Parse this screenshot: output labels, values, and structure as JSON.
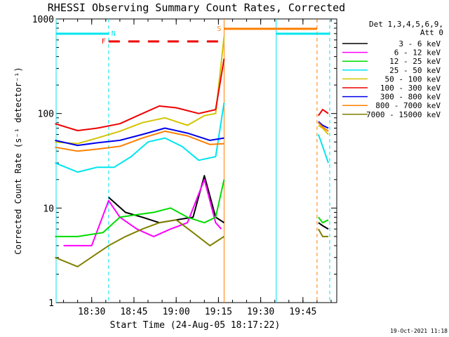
{
  "chart_data": {
    "type": "line",
    "title": "RHESSI Observing Summary Count Rates, Corrected",
    "ylabel": "Corrected Count Rate (s⁻¹ detector⁻¹)",
    "xlabel": "Start Time (24-Aug-05 18:17:22)",
    "yscale": "log",
    "ylim": [
      1,
      1000
    ],
    "xlim": [
      "18:17:22",
      "19:57:00"
    ],
    "yticks": [
      {
        "value": 1,
        "label": "1"
      },
      {
        "value": 10,
        "label": "10"
      },
      {
        "value": 100,
        "label": "100"
      },
      {
        "value": 1000,
        "label": "1000"
      }
    ],
    "xticks": [
      "18:30",
      "18:45",
      "19:00",
      "19:15",
      "19:30",
      "19:45"
    ],
    "legend": {
      "placement": "right",
      "header": [
        "Det 1,3,4,5,6,9,",
        "Att 0"
      ],
      "entries": [
        {
          "label": "3 - 6 keV",
          "color": "#000000"
        },
        {
          "label": "6 - 12 keV",
          "color": "#ff00ff"
        },
        {
          "label": "12 - 25 keV",
          "color": "#00dd00"
        },
        {
          "label": "25 - 50 keV",
          "color": "#00e5ee"
        },
        {
          "label": "50 - 100 keV",
          "color": "#d4c400"
        },
        {
          "label": "100 - 300 keV",
          "color": "#ee0000"
        },
        {
          "label": "300 - 800 keV",
          "color": "#0000ee"
        },
        {
          "label": "800 - 7000 keV",
          "color": "#ff7f00"
        },
        {
          "label": "7000 - 15000 keV",
          "color": "#808000"
        }
      ]
    },
    "flags": [
      {
        "label": "N",
        "color": "#00e5ee",
        "segments": [
          [
            "18:17:22",
            "18:36:00"
          ],
          [
            "19:35:30",
            "19:54:30"
          ]
        ]
      },
      {
        "label": "F",
        "color": "#ee0000",
        "dashed": true,
        "segments": [
          [
            "18:36:00",
            "19:16:30"
          ]
        ]
      },
      {
        "label": "S",
        "color": "#ff7f00",
        "segments": [
          [
            "19:17:00",
            "19:50:00"
          ]
        ]
      }
    ],
    "markers": [
      {
        "time": "18:17:22",
        "color": "#00e5ee",
        "style": "solid"
      },
      {
        "time": "18:36:00",
        "color": "#00e5ee",
        "style": "dashed"
      },
      {
        "time": "19:17:00",
        "color": "#ff7f00",
        "style": "solid"
      },
      {
        "time": "19:35:30",
        "color": "#00e5ee",
        "style": "solid"
      },
      {
        "time": "19:50:00",
        "color": "#ff7f00",
        "style": "dashed"
      },
      {
        "time": "19:54:30",
        "color": "#00e5ee",
        "style": "dashed"
      }
    ],
    "series": [
      {
        "name": "3 - 6 keV",
        "color": "#000000",
        "x": [
          "18:36",
          "18:42",
          "18:48",
          "18:54",
          "19:00",
          "19:06",
          "19:10",
          "19:14",
          "19:17"
        ],
        "values": [
          13,
          9,
          8,
          7,
          7.5,
          8,
          22,
          8,
          7
        ]
      },
      {
        "name": "6 - 12 keV",
        "color": "#ff00ff",
        "x": [
          "18:20",
          "18:30",
          "18:36",
          "18:40",
          "18:46",
          "18:52",
          "18:58",
          "19:04",
          "19:10",
          "19:14",
          "19:16"
        ],
        "values": [
          4,
          4,
          12,
          8,
          6,
          5,
          6,
          7,
          20,
          7,
          6
        ]
      },
      {
        "name": "12 - 25 keV",
        "color": "#00dd00",
        "x": [
          "18:17",
          "18:25",
          "18:34",
          "18:40",
          "18:46",
          "18:52",
          "18:58",
          "19:04",
          "19:10",
          "19:14",
          "19:17"
        ],
        "values": [
          5,
          5,
          5.5,
          8,
          8.5,
          9,
          10,
          8,
          7,
          8,
          20
        ]
      },
      {
        "name": "25 - 50 keV",
        "color": "#00e5ee",
        "x": [
          "18:17",
          "18:25",
          "18:32",
          "18:38",
          "18:44",
          "18:50",
          "18:56",
          "19:02",
          "19:08",
          "19:14",
          "19:17"
        ],
        "values": [
          30,
          24,
          27,
          27,
          35,
          50,
          55,
          45,
          32,
          35,
          130
        ]
      },
      {
        "name": "50 - 100 keV",
        "color": "#d4c400",
        "x": [
          "18:17",
          "18:25",
          "18:32",
          "18:40",
          "18:48",
          "18:56",
          "19:04",
          "19:10",
          "19:14",
          "19:17"
        ],
        "values": [
          50,
          48,
          55,
          65,
          80,
          90,
          75,
          95,
          100,
          650
        ]
      },
      {
        "name": "100 - 300 keV",
        "color": "#ee0000",
        "x": [
          "18:17",
          "18:25",
          "18:32",
          "18:40",
          "18:48",
          "18:54",
          "19:00",
          "19:08",
          "19:14",
          "19:17"
        ],
        "values": [
          78,
          66,
          70,
          78,
          100,
          120,
          115,
          100,
          110,
          380
        ]
      },
      {
        "name": "300 - 800 keV",
        "color": "#0000ee",
        "x": [
          "18:17",
          "18:25",
          "18:32",
          "18:40",
          "18:48",
          "18:56",
          "19:04",
          "19:12",
          "19:17"
        ],
        "values": [
          52,
          46,
          49,
          52,
          60,
          70,
          62,
          52,
          55
        ]
      },
      {
        "name": "800 - 7000 keV",
        "color": "#ff7f00",
        "x": [
          "18:17",
          "18:25",
          "18:32",
          "18:40",
          "18:48",
          "18:56",
          "19:04",
          "19:12",
          "19:17"
        ],
        "values": [
          44,
          40,
          42,
          45,
          55,
          65,
          58,
          47,
          48
        ]
      },
      {
        "name": "7000 - 15000 keV",
        "color": "#808000",
        "x": [
          "18:17",
          "18:25",
          "18:36",
          "18:42",
          "18:48",
          "18:54",
          "19:00",
          "19:06",
          "19:12",
          "19:17"
        ],
        "values": [
          3,
          2.4,
          4,
          5,
          6,
          7,
          7.5,
          5.5,
          4,
          5
        ]
      }
    ],
    "post_series": [
      {
        "name": "3 - 6 keV",
        "color": "#000000",
        "x": [
          "19:50:30",
          "19:52",
          "19:54"
        ],
        "values": [
          7,
          6.5,
          6
        ]
      },
      {
        "name": "12 - 25 keV",
        "color": "#00dd00",
        "x": [
          "19:50:30",
          "19:52",
          "19:54"
        ],
        "values": [
          8,
          7,
          7.5
        ]
      },
      {
        "name": "25 - 50 keV",
        "color": "#00e5ee",
        "x": [
          "19:50:30",
          "19:52",
          "19:54"
        ],
        "values": [
          60,
          45,
          30
        ]
      },
      {
        "name": "50 - 100 keV",
        "color": "#d4c400",
        "x": [
          "19:50:30",
          "19:52",
          "19:54"
        ],
        "values": [
          75,
          70,
          60
        ]
      },
      {
        "name": "100 - 300 keV",
        "color": "#ee0000",
        "x": [
          "19:50:30",
          "19:52",
          "19:54"
        ],
        "values": [
          95,
          110,
          100
        ]
      },
      {
        "name": "300 - 800 keV",
        "color": "#0000ee",
        "x": [
          "19:50:30",
          "19:52",
          "19:54"
        ],
        "values": [
          82,
          75,
          70
        ]
      },
      {
        "name": "800 - 7000 keV",
        "color": "#ff7f00",
        "x": [
          "19:50:30",
          "19:52",
          "19:54"
        ],
        "values": [
          80,
          72,
          65
        ]
      },
      {
        "name": "7000 - 15000 keV",
        "color": "#808000",
        "x": [
          "19:50:30",
          "19:52",
          "19:54"
        ],
        "values": [
          6,
          5,
          5
        ]
      }
    ]
  },
  "footer": {
    "timestamp": "19-Oct-2021 11:18"
  }
}
